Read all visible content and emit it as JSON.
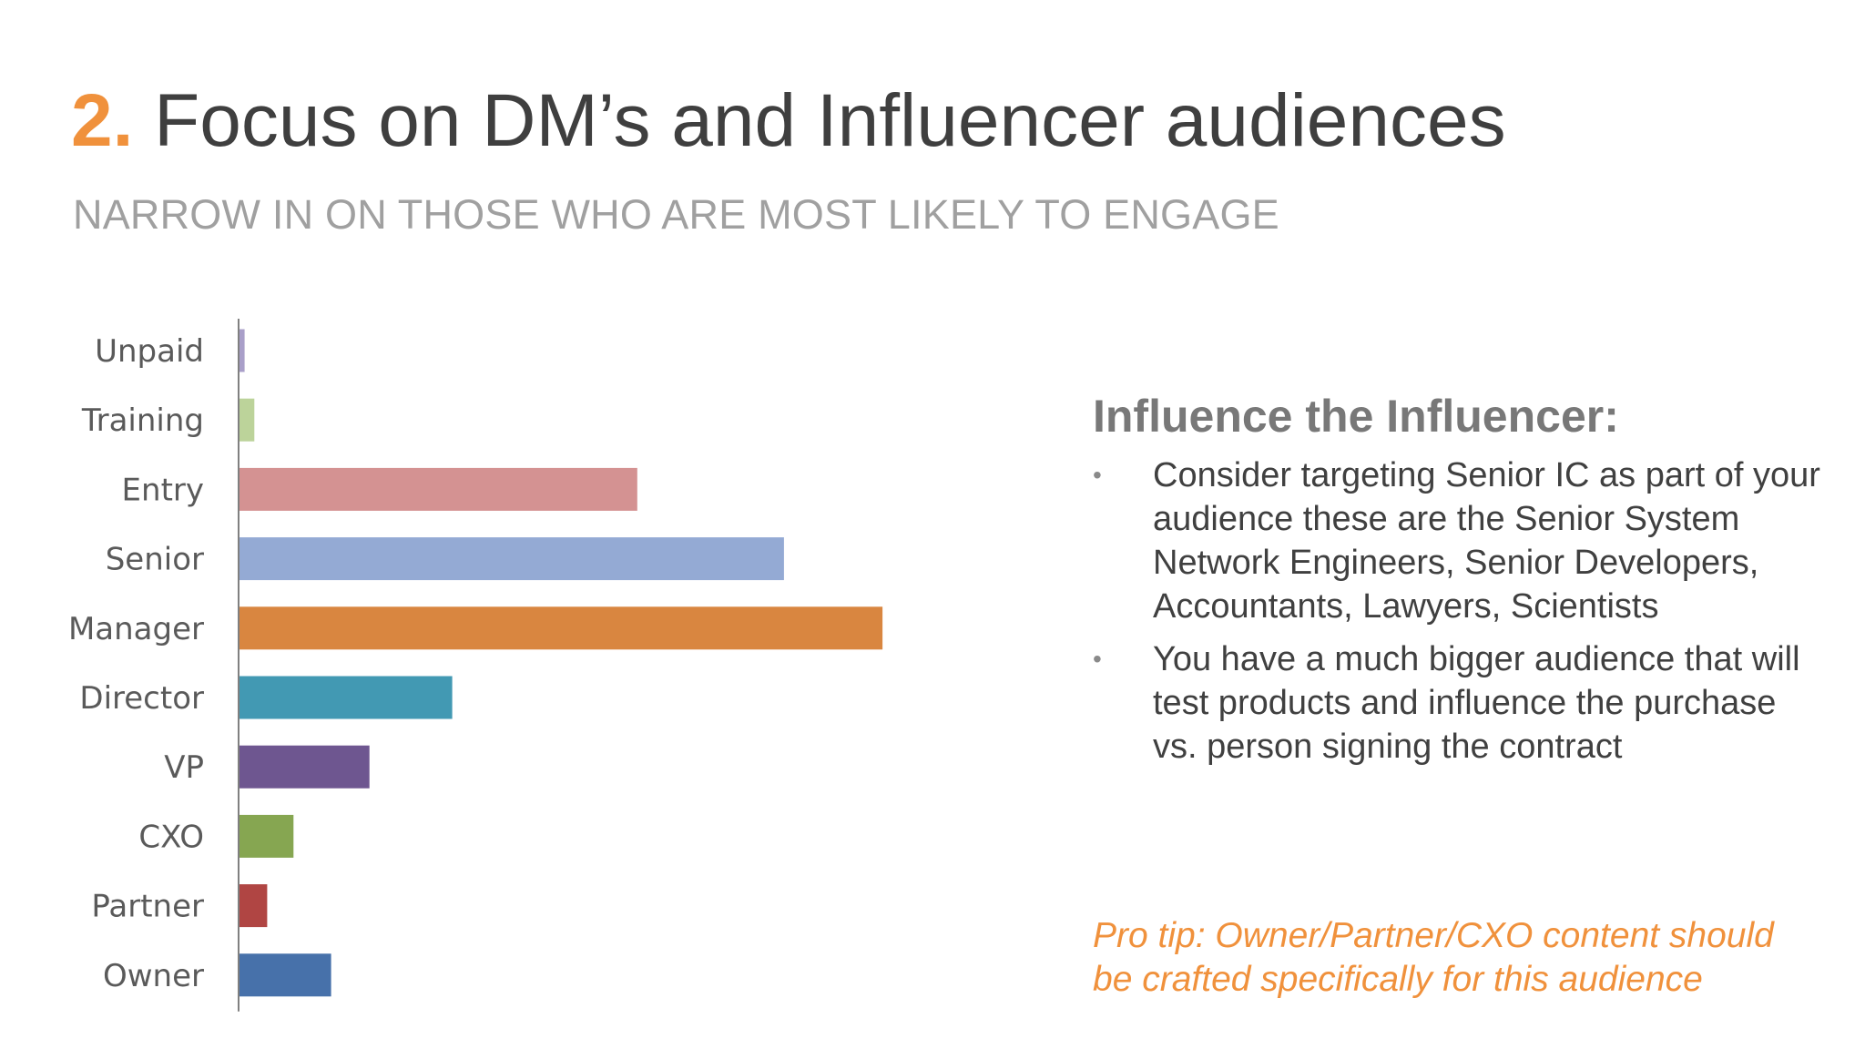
{
  "slide": {
    "title_number": "2.",
    "title_text": " Focus on DM’s and Influencer audiences",
    "subtitle": "NARROW IN ON THOSE WHO ARE MOST LIKELY TO ENGAGE"
  },
  "panel": {
    "heading": "Influence the Influencer:",
    "bullets": [
      {
        "marker": "•",
        "text": "Consider targeting Senior IC as part of your audience these are the Senior System Network Engineers, Senior Developers, Accountants, Lawyers, Scientists"
      },
      {
        "marker": "•",
        "text": "You have a much bigger audience that will test products and influence the purchase vs. person signing the contract"
      }
    ],
    "tip": "Pro tip: Owner/Partner/CXO content should be crafted specifically for this audience"
  },
  "chart_data": {
    "type": "bar",
    "orientation": "horizontal",
    "categories": [
      "Unpaid",
      "Training",
      "Entry",
      "Senior",
      "Manager",
      "Director",
      "VP",
      "CXO",
      "Partner",
      "Owner"
    ],
    "values": [
      0.8,
      2.1,
      53,
      72.5,
      85.6,
      28.4,
      17.4,
      7.3,
      3.8,
      12.3
    ],
    "colors": [
      "#a99fc9",
      "#bcd39a",
      "#d49292",
      "#94aad4",
      "#d98640",
      "#4299b3",
      "#6e5690",
      "#86a651",
      "#b04543",
      "#4771aa"
    ],
    "xlim": [
      0,
      100
    ],
    "grid": false,
    "legend": "none"
  }
}
